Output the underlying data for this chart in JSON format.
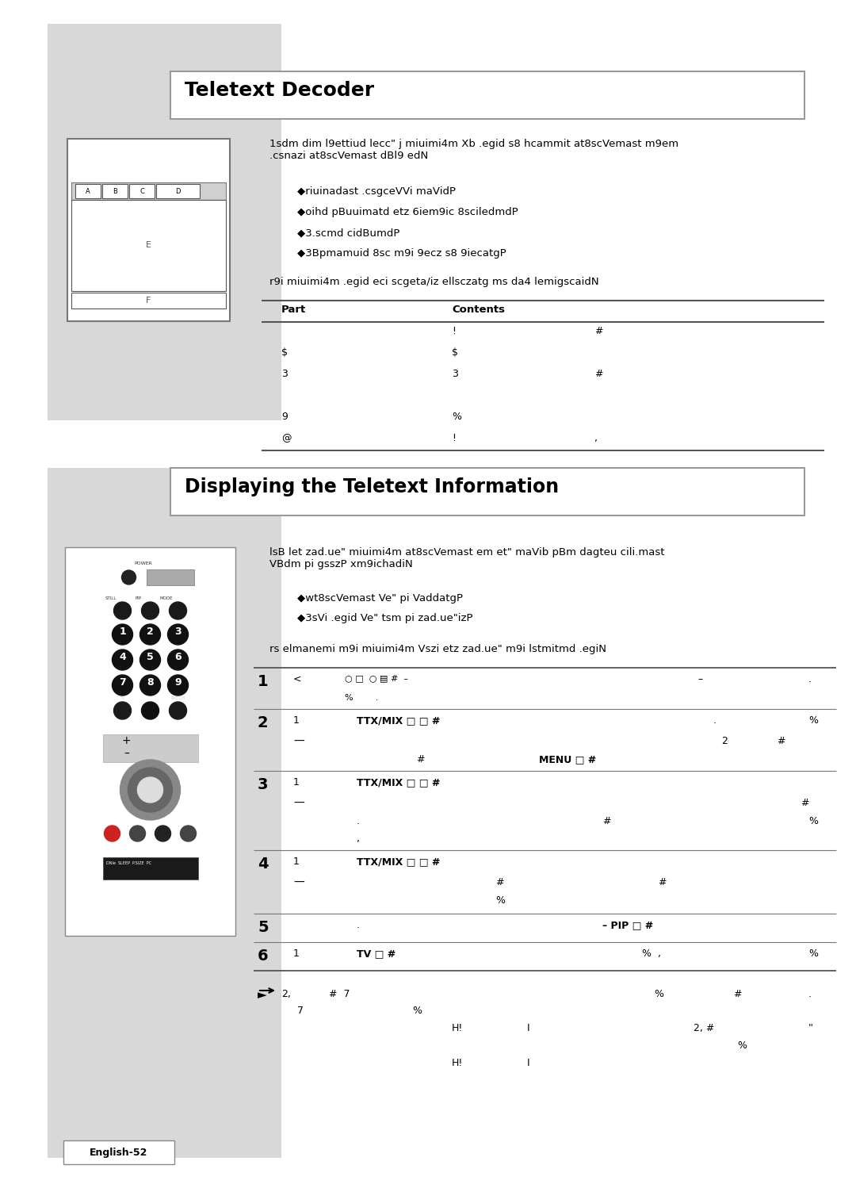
{
  "title1": "Teletext Decoder",
  "title2": "Displaying the Teletext Information",
  "bg_white": "#ffffff",
  "bg_gray": "#d8d8d8",
  "black": "#000000",
  "mid_gray": "#888888",
  "dark": "#333333",
  "section1_text1": "1sdm dim l9ettiud lecc\" j miuimi4m Xb .egid s8 hcammit at8scVemast m9em\n.csnazi at8scVemast dBl9 edN",
  "section1_bullets": [
    "◆riuinadast .csgceVVi maVidP",
    "◆oihd pBuuimatd etz 6iem9ic 8sciledmdP",
    "◆3.scmd cidBumdP",
    "◆3Bpmamuid 8sc m9i 9ecz s8 9iecatgP"
  ],
  "section1_text2": "r9i miuimi4m .egid eci scgeta/iz ellsczatg ms da4 lemigscaidN",
  "table1_rows": [
    [
      "",
      "!",
      "#"
    ],
    [
      "$",
      "$",
      ""
    ],
    [
      "3",
      "3",
      "#"
    ],
    [
      "",
      "",
      ""
    ],
    [
      "9",
      "%",
      ""
    ],
    [
      "@",
      "!",
      ","
    ]
  ],
  "section2_text1": "lsB let zad.ue\" miuimi4m at8scVemast em et\" maVib pBm dagteu cili.mast\nVBdm pi gsszP xm9ichadiN",
  "section2_bullets": [
    "◆wt8scVemast Ve\" pi VaddatgP",
    "◆3sVi .egid Ve\" tsm pi zad.ue\"izP"
  ],
  "section2_text2": "rs elmanemi m9i miuimi4m Vszi etz zad.ue\" m9i lstmitmd .egiN",
  "footer_text": "English-52"
}
